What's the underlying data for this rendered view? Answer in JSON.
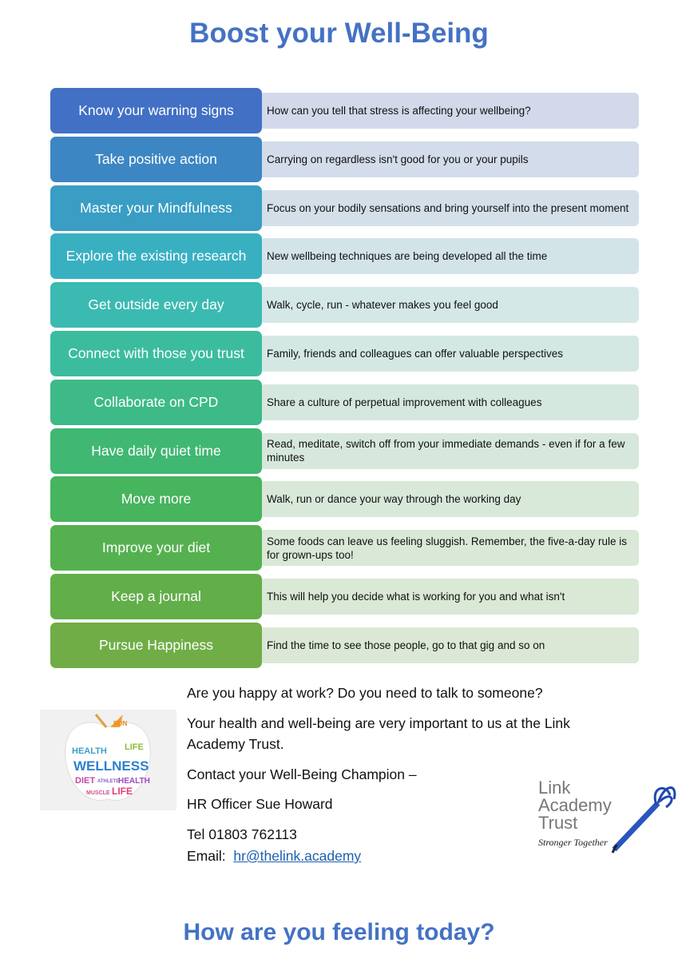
{
  "title": "Boost your Well-Being",
  "rows": [
    {
      "label": "Know your warning signs",
      "text": "How can you tell that stress is affecting your wellbeing?",
      "color": "#4270c5",
      "bg": "#d3d9eb"
    },
    {
      "label": "Take positive action",
      "text": "Carrying on regardless isn't good for you or your pupils",
      "color": "#3c86c4",
      "bg": "#d3dcea"
    },
    {
      "label": "Master your Mindfulness",
      "text": "Focus on your bodily sensations and bring yourself into the present moment",
      "color": "#399dc4",
      "bg": "#d3e0ea"
    },
    {
      "label": "Explore the existing research",
      "text": "New wellbeing techniques are being developed all the time",
      "color": "#39b0c2",
      "bg": "#d3e4e9"
    },
    {
      "label": "Get outside every day",
      "text": "Walk, cycle, run - whatever makes you feel good",
      "color": "#3bbab2",
      "bg": "#d4e8e7"
    },
    {
      "label": "Connect with those you trust",
      "text": "Family, friends and colleagues can offer valuable perspectives",
      "color": "#3cbc9f",
      "bg": "#d4e8e3"
    },
    {
      "label": "Collaborate on CPD",
      "text": "Share a culture of perpetual improvement with colleagues",
      "color": "#3dba88",
      "bg": "#d5e8df"
    },
    {
      "label": "Have daily quiet time",
      "text": "Read, meditate, switch off from your immediate demands - even if for a few minutes",
      "color": "#40b772",
      "bg": "#d6e8dc"
    },
    {
      "label": "Move more",
      "text": "Walk, run or dance your way through the working day",
      "color": "#47b45e",
      "bg": "#d8e8d9"
    },
    {
      "label": "Improve your diet",
      "text": "Some foods can leave us feeling sluggish. Remember, the five-a-day rule is for grown-ups too!",
      "color": "#55b14f",
      "bg": "#d9e8d7"
    },
    {
      "label": "Keep a journal",
      "text": "This will help you decide what is working for you and what isn't",
      "color": "#62ae49",
      "bg": "#dae8d6"
    },
    {
      "label": "Pursue Happiness",
      "text": "Find the time to see those people, go to that gig and so on",
      "color": "#70ad47",
      "bg": "#dbe8d5"
    }
  ],
  "contact": {
    "question": "Are you happy at work?  Do you need to talk to someone?",
    "importance": "Your health and well-being are very important to us at the Link Academy Trust.",
    "champion": "Contact your Well-Being Champion –",
    "officer": "HR Officer Sue Howard",
    "tel": "Tel 01803 762113",
    "email_label": "Email:",
    "email": "hr@thelink.academy"
  },
  "apple_image": {
    "words": [
      "HEALTH",
      "WELLNESS",
      "DIET",
      "LIFE",
      "RUN",
      "MUSCLE",
      "ATHLETE"
    ]
  },
  "logo": {
    "line1": "Link",
    "line2": "Academy",
    "line3": "Trust",
    "tagline": "Stronger Together"
  },
  "footer": "How are you feeling today?"
}
